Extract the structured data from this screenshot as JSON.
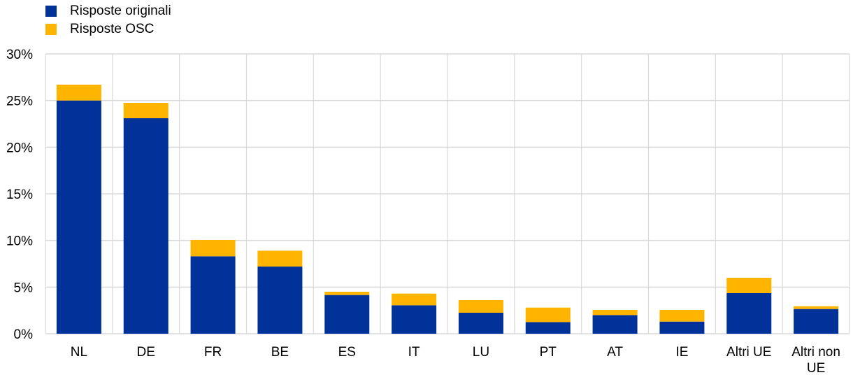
{
  "chart_data": {
    "type": "bar",
    "stacked": true,
    "categories": [
      "NL",
      "DE",
      "FR",
      "BE",
      "ES",
      "IT",
      "LU",
      "PT",
      "AT",
      "IE",
      "Altri UE",
      "Altri non UE"
    ],
    "series": [
      {
        "name": "Risposte originali",
        "color": "#003299",
        "values": [
          25.0,
          23.1,
          8.3,
          7.2,
          4.15,
          3.05,
          2.25,
          1.25,
          2.0,
          1.3,
          4.35,
          2.65
        ]
      },
      {
        "name": "Risposte OSC",
        "color": "#FFB400",
        "values": [
          1.7,
          1.65,
          1.75,
          1.7,
          0.35,
          1.25,
          1.35,
          1.55,
          0.55,
          1.25,
          1.65,
          0.3
        ]
      }
    ],
    "yticks": [
      "0%",
      "5%",
      "10%",
      "15%",
      "20%",
      "25%",
      "30%"
    ],
    "ylim": [
      0,
      30
    ],
    "grid": true,
    "legend": "top-left"
  }
}
